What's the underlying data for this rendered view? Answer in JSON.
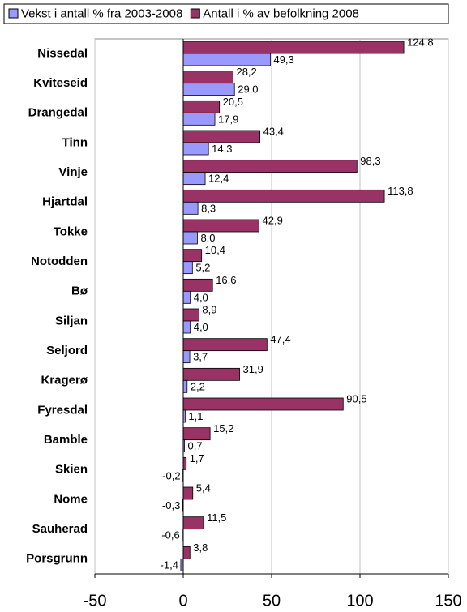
{
  "chart_data": {
    "type": "bar",
    "orientation": "horizontal",
    "categories": [
      "Nissedal",
      "Kviteseid",
      "Drangedal",
      "Tinn",
      "Vinje",
      "Hjartdal",
      "Tokke",
      "Notodden",
      "Bø",
      "Siljan",
      "Seljord",
      "Kragerø",
      "Fyresdal",
      "Bamble",
      "Skien",
      "Nome",
      "Sauherad",
      "Porsgrunn"
    ],
    "series": [
      {
        "name": "Vekst i antall % fra 2003-2008",
        "color": "#9999ff",
        "values": [
          49.3,
          29.0,
          17.9,
          14.3,
          12.4,
          8.3,
          8.0,
          5.2,
          4.0,
          4.0,
          3.7,
          2.2,
          1.1,
          0.7,
          -0.2,
          -0.3,
          -0.6,
          -1.4
        ],
        "value_labels": [
          "49,3",
          "29,0",
          "17,9",
          "14,3",
          "12,4",
          "8,3",
          "8,0",
          "5,2",
          "4,0",
          "4,0",
          "3,7",
          "2,2",
          "1,1",
          "0,7",
          "-0,2",
          "-0,3",
          "-0,6",
          "-1,4"
        ]
      },
      {
        "name": "Antall i % av befolkning 2008",
        "color": "#993366",
        "values": [
          124.8,
          28.2,
          20.5,
          43.4,
          98.3,
          113.8,
          42.9,
          10.4,
          16.6,
          8.9,
          47.4,
          31.9,
          90.5,
          15.2,
          1.7,
          5.4,
          11.5,
          3.8
        ],
        "value_labels": [
          "124,8",
          "28,2",
          "20,5",
          "43,4",
          "98,3",
          "113,8",
          "42,9",
          "10,4",
          "16,6",
          "8,9",
          "47,4",
          "31,9",
          "90,5",
          "15,2",
          "1,7",
          "5,4",
          "11,5",
          "3,8"
        ]
      }
    ],
    "xlim": [
      -50,
      150
    ],
    "xticks": [
      -50,
      0,
      50,
      100,
      150
    ],
    "grid": true,
    "legend": "top"
  }
}
